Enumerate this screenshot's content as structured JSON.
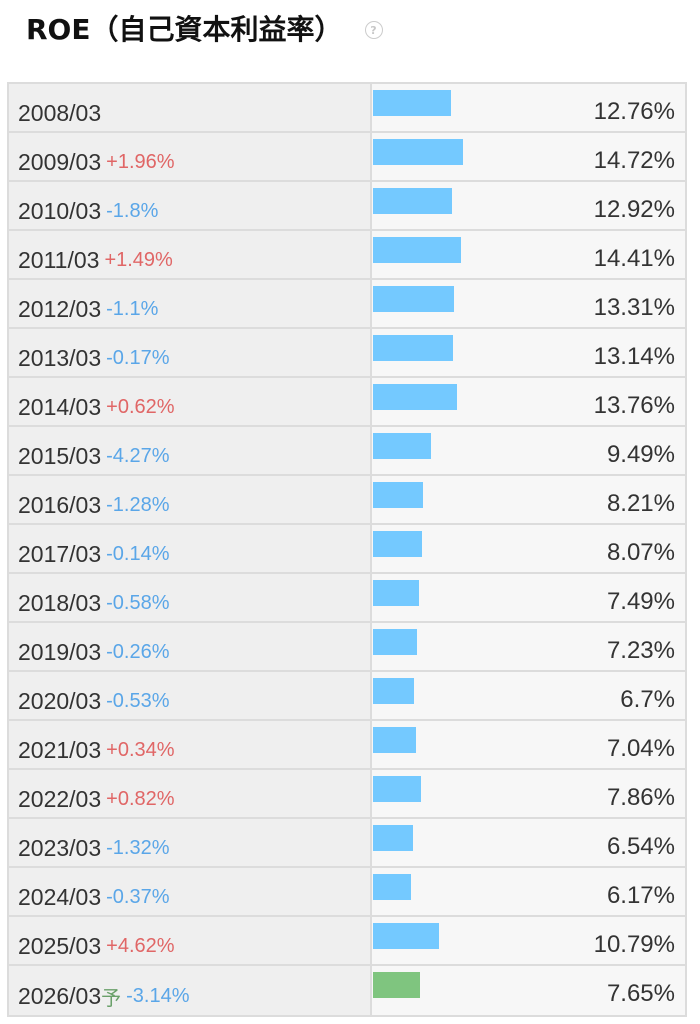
{
  "header": {
    "title": "ROE（自己資本利益率）",
    "help_icon": "?"
  },
  "chart_data": {
    "type": "bar",
    "orientation": "horizontal",
    "categories": [
      "2008/03",
      "2009/03",
      "2010/03",
      "2011/03",
      "2012/03",
      "2013/03",
      "2014/03",
      "2015/03",
      "2016/03",
      "2017/03",
      "2018/03",
      "2019/03",
      "2020/03",
      "2021/03",
      "2022/03",
      "2023/03",
      "2024/03",
      "2025/03",
      "2026/03"
    ],
    "values": [
      12.76,
      14.72,
      12.92,
      14.41,
      13.31,
      13.14,
      13.76,
      9.49,
      8.21,
      8.07,
      7.49,
      7.23,
      6.7,
      7.04,
      7.86,
      6.54,
      6.17,
      10.79,
      7.65
    ],
    "rows": [
      {
        "period": "2008/03",
        "pred": "",
        "delta": "",
        "dir": "",
        "value_label": "12.76%",
        "value": 12.76,
        "forecast": false
      },
      {
        "period": "2009/03",
        "pred": "",
        "delta": "+1.96%",
        "dir": "up",
        "value_label": "14.72%",
        "value": 14.72,
        "forecast": false
      },
      {
        "period": "2010/03",
        "pred": "",
        "delta": "-1.8%",
        "dir": "down",
        "value_label": "12.92%",
        "value": 12.92,
        "forecast": false
      },
      {
        "period": "2011/03",
        "pred": "",
        "delta": "+1.49%",
        "dir": "up",
        "value_label": "14.41%",
        "value": 14.41,
        "forecast": false
      },
      {
        "period": "2012/03",
        "pred": "",
        "delta": "-1.1%",
        "dir": "down",
        "value_label": "13.31%",
        "value": 13.31,
        "forecast": false
      },
      {
        "period": "2013/03",
        "pred": "",
        "delta": "-0.17%",
        "dir": "down",
        "value_label": "13.14%",
        "value": 13.14,
        "forecast": false
      },
      {
        "period": "2014/03",
        "pred": "",
        "delta": "+0.62%",
        "dir": "up",
        "value_label": "13.76%",
        "value": 13.76,
        "forecast": false
      },
      {
        "period": "2015/03",
        "pred": "",
        "delta": "-4.27%",
        "dir": "down",
        "value_label": "9.49%",
        "value": 9.49,
        "forecast": false
      },
      {
        "period": "2016/03",
        "pred": "",
        "delta": "-1.28%",
        "dir": "down",
        "value_label": "8.21%",
        "value": 8.21,
        "forecast": false
      },
      {
        "period": "2017/03",
        "pred": "",
        "delta": "-0.14%",
        "dir": "down",
        "value_label": "8.07%",
        "value": 8.07,
        "forecast": false
      },
      {
        "period": "2018/03",
        "pred": "",
        "delta": "-0.58%",
        "dir": "down",
        "value_label": "7.49%",
        "value": 7.49,
        "forecast": false
      },
      {
        "period": "2019/03",
        "pred": "",
        "delta": "-0.26%",
        "dir": "down",
        "value_label": "7.23%",
        "value": 7.23,
        "forecast": false
      },
      {
        "period": "2020/03",
        "pred": "",
        "delta": "-0.53%",
        "dir": "down",
        "value_label": "6.7%",
        "value": 6.7,
        "forecast": false
      },
      {
        "period": "2021/03",
        "pred": "",
        "delta": "+0.34%",
        "dir": "up",
        "value_label": "7.04%",
        "value": 7.04,
        "forecast": false
      },
      {
        "period": "2022/03",
        "pred": "",
        "delta": "+0.82%",
        "dir": "up",
        "value_label": "7.86%",
        "value": 7.86,
        "forecast": false
      },
      {
        "period": "2023/03",
        "pred": "",
        "delta": "-1.32%",
        "dir": "down",
        "value_label": "6.54%",
        "value": 6.54,
        "forecast": false
      },
      {
        "period": "2024/03",
        "pred": "",
        "delta": "-0.37%",
        "dir": "down",
        "value_label": "6.17%",
        "value": 6.17,
        "forecast": false
      },
      {
        "period": "2025/03",
        "pred": "",
        "delta": "+4.62%",
        "dir": "up",
        "value_label": "10.79%",
        "value": 10.79,
        "forecast": false
      },
      {
        "period": "2026/03",
        "pred": "予",
        "delta": "-3.14%",
        "dir": "down",
        "value_label": "7.65%",
        "value": 7.65,
        "forecast": true
      }
    ],
    "xlim": [
      0,
      14.72
    ],
    "colors": {
      "actual_bar": "#74c9ff",
      "forecast_bar": "#7fc57f",
      "increase": "#e06666",
      "decrease": "#5aa6e8"
    }
  }
}
